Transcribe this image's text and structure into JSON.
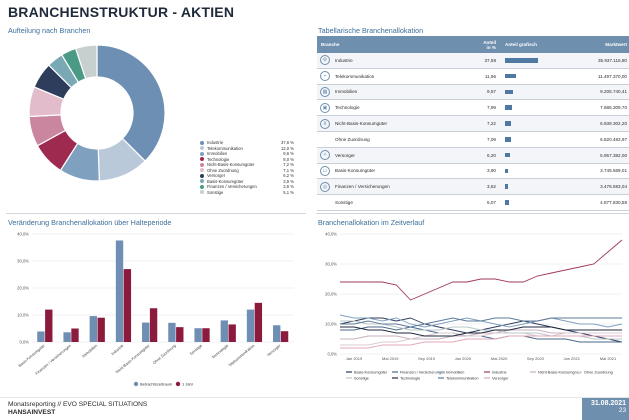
{
  "page": {
    "title": "BRANCHENSTRUKTUR - AKTIEN",
    "footer_line1": "Monatsreporting // EVO SPECIAL SITUATIONS",
    "footer_line2": "HANSAINVEST",
    "date": "31.08.2021",
    "page_number": "23"
  },
  "panels": {
    "donut_title": "Aufteilung nach Branchen",
    "table_title": "Tabellarische Branchenallokation",
    "bar_title": "Veränderung Branchenallokation über Halteperiode",
    "line_title": "Branchenallokation im Zeitverlauf"
  },
  "colors": {
    "accent": "#6f8faf",
    "title_blue": "#3c6e9a",
    "bar_series1": "#6e8eb3",
    "bar_series2": "#8b1a3d"
  },
  "table": {
    "headers": [
      "Branche",
      "Anteil in %",
      "Anteil grafisch",
      "Marktwert"
    ],
    "rows": [
      {
        "name": "Industrie",
        "pct": "37,58",
        "value": 37.58,
        "mkt": "35.937.115,80",
        "icon": "gear-icon"
      },
      {
        "name": "Telekommunikation",
        "pct": "11,96",
        "value": 11.96,
        "mkt": "11.497.370,00",
        "icon": "antenna-icon"
      },
      {
        "name": "Immobilien",
        "pct": "9,57",
        "value": 9.57,
        "mkt": "9.205.740,41",
        "icon": "building-icon"
      },
      {
        "name": "Technologie",
        "pct": "7,99",
        "value": 7.99,
        "mkt": "7.686.309,70",
        "icon": "chip-icon"
      },
      {
        "name": "Nicht-Basis-Konsumgüter",
        "pct": "7,22",
        "value": 7.22,
        "mkt": "6.939.302,20",
        "icon": "cart-icon"
      },
      {
        "name": "Ohne Zuordnung",
        "pct": "7,09",
        "value": 7.09,
        "mkt": "6.820.483,97",
        "icon": ""
      },
      {
        "name": "Versorger",
        "pct": "6,20",
        "value": 6.2,
        "mkt": "5.957.382,00",
        "icon": "bulb-icon"
      },
      {
        "name": "Basis-Konsumgüter",
        "pct": "3,90",
        "value": 3.9,
        "mkt": "3.745.569,01",
        "icon": "basket-icon"
      },
      {
        "name": "Finanzen / Versicherungen",
        "pct": "3,62",
        "value": 3.62,
        "mkt": "3.476.593,04",
        "icon": "coin-icon"
      },
      {
        "name": "Sonstige",
        "pct": "5,07",
        "value": 5.07,
        "mkt": "4.877.830,58",
        "icon": ""
      }
    ]
  },
  "chart_data": [
    {
      "type": "pie",
      "title": "Aufteilung nach Branchen",
      "legend_position": "right",
      "categories": [
        "Industrie",
        "Telekommunikation",
        "Immobilien",
        "Technologie",
        "Nicht-Basis-Konsumgüter",
        "Ohne Zuordnung",
        "Versorger",
        "Basis-Konsumgüter",
        "Finanzen / Versicherungen",
        "Sonstige"
      ],
      "labels": [
        "37,6 %",
        "12,0 %",
        "9,6 %",
        "8,0 %",
        "7,2 %",
        "7,1 %",
        "6,2 %",
        "3,9 %",
        "3,6 %",
        "5,1 %"
      ],
      "values": [
        37.6,
        12.0,
        9.6,
        8.0,
        7.2,
        7.1,
        6.2,
        3.9,
        3.6,
        5.1
      ],
      "colors": [
        "#6c8fb3",
        "#b9c9da",
        "#7fa0bf",
        "#9e2a4f",
        "#c9869e",
        "#e2bccb",
        "#2f3d5c",
        "#7aa8b5",
        "#4b9a86",
        "#c8cfcf"
      ]
    },
    {
      "type": "bar",
      "title": "Veränderung Branchenallokation über Halteperiode",
      "ylim": [
        0,
        40
      ],
      "yticks": [
        "0,0%",
        "10,0%",
        "20,0%",
        "30,0%",
        "40,0%"
      ],
      "grid": true,
      "legend_position": "bottom",
      "categories": [
        "Basis-Konsumgüter",
        "Finanzen / Versicherungen",
        "Immobilien",
        "Industrie",
        "Nicht-Basis-Konsumgüter",
        "Ohne Zuordnung",
        "Sonstige",
        "Technologie",
        "Telekommunikation",
        "Versorger"
      ],
      "series": [
        {
          "name": "Betrachtszeitraum",
          "values": [
            3.9,
            3.6,
            9.6,
            37.6,
            7.2,
            7.1,
            5.1,
            8.0,
            12.0,
            6.2
          ]
        },
        {
          "name": "1 Jahr",
          "values": [
            12.0,
            5.0,
            9.0,
            27.0,
            12.5,
            5.5,
            5.1,
            6.5,
            14.5,
            4.0
          ]
        }
      ]
    },
    {
      "type": "line",
      "title": "Branchenallokation im Zeitverlauf",
      "ylim": [
        0,
        40
      ],
      "yticks": [
        "0,0%",
        "10,0%",
        "20,0%",
        "30,0%",
        "40,0%"
      ],
      "x_ticks": [
        "Jan 2019",
        "Mai 2019",
        "Sep 2019",
        "Jan 2020",
        "Mai 2020",
        "Sep 2020",
        "Jan 2021",
        "Mai 2021"
      ],
      "grid": true,
      "legend_position": "bottom",
      "series": [
        {
          "name": "Basis-Konsumgüter",
          "color": "#2f3d5c",
          "values": [
            10,
            11,
            12,
            12,
            11,
            12,
            10,
            9,
            8,
            7,
            8,
            9,
            10,
            11,
            10,
            9,
            8,
            7,
            6,
            5,
            4
          ]
        },
        {
          "name": "Finanzen / Versicherungen",
          "color": "#4b6a8a",
          "values": [
            8,
            8,
            9,
            9,
            8,
            9,
            8,
            7,
            7,
            6,
            6,
            5,
            6,
            6,
            5,
            5,
            5,
            4,
            4,
            4,
            4
          ]
        },
        {
          "name": "Immobilien",
          "color": "#7fa0bf",
          "values": [
            13,
            12,
            12,
            11,
            12,
            10,
            9,
            10,
            11,
            12,
            11,
            10,
            9,
            10,
            11,
            12,
            11,
            10,
            10,
            9,
            10
          ]
        },
        {
          "name": "Industrie",
          "color": "#9e3a5a",
          "values": [
            24,
            24,
            24,
            24,
            23,
            18,
            20,
            22,
            24,
            24,
            25,
            25,
            24,
            24,
            26,
            27,
            28,
            29,
            30,
            34,
            38
          ]
        },
        {
          "name": "Nicht-Basis-Konsumgüter",
          "color": "#c6b0bd",
          "values": [
            5,
            5,
            6,
            6,
            6,
            5,
            5,
            5,
            6,
            6,
            7,
            7,
            8,
            8,
            8,
            7,
            7,
            7,
            7,
            7,
            7
          ]
        },
        {
          "name": "Ohne Zuordnung",
          "color": "#d9c9cf",
          "values": [
            3,
            3,
            3,
            4,
            4,
            5,
            6,
            7,
            7,
            6,
            6,
            7,
            7,
            7,
            6,
            6,
            7,
            7,
            7,
            7,
            7
          ]
        },
        {
          "name": "Sonstige",
          "color": "#b7c7c7",
          "values": [
            11,
            11,
            10,
            10,
            9,
            8,
            8,
            8,
            9,
            9,
            8,
            8,
            7,
            7,
            7,
            6,
            6,
            6,
            5,
            5,
            5
          ]
        },
        {
          "name": "Technologie",
          "color": "#222a40",
          "values": [
            9,
            9,
            8,
            8,
            7,
            7,
            6,
            6,
            6,
            7,
            7,
            8,
            8,
            9,
            9,
            9,
            8,
            8,
            8,
            8,
            8
          ]
        },
        {
          "name": "Telekommunikation",
          "color": "#5d7a99",
          "values": [
            10,
            10,
            11,
            10,
            10,
            9,
            10,
            11,
            12,
            11,
            11,
            12,
            12,
            11,
            11,
            12,
            12,
            12,
            12,
            12,
            12
          ]
        },
        {
          "name": "Versorger",
          "color": "#e2a7b8",
          "values": [
            2,
            2,
            2,
            3,
            3,
            3,
            4,
            4,
            4,
            5,
            5,
            5,
            6,
            6,
            6,
            6,
            6,
            6,
            6,
            6,
            6
          ]
        }
      ]
    }
  ]
}
